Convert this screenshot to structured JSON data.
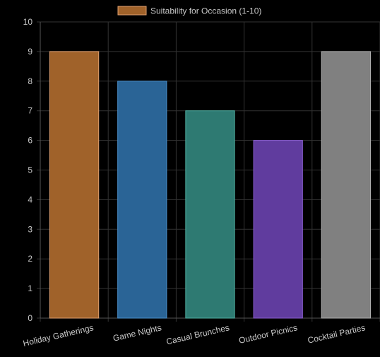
{
  "chart_data": {
    "type": "bar",
    "categories": [
      "Holiday Gatherings",
      "Game Nights",
      "Casual Brunches",
      "Outdoor Picnics",
      "Cocktail Parties"
    ],
    "series": [
      {
        "name": "Suitability for Occasion (1-10)",
        "values": [
          9,
          8,
          7,
          6,
          9
        ]
      }
    ],
    "ylim": [
      0,
      10
    ],
    "yticks": [
      0,
      1,
      2,
      3,
      4,
      5,
      6,
      7,
      8,
      9,
      10
    ],
    "grid": true,
    "legend": "top-center"
  },
  "colors": {
    "bars_fill": [
      "#a0622a",
      "#2a6496",
      "#2e7a72",
      "#603c9e",
      "#808080"
    ],
    "bars_stroke": [
      "#e0a070",
      "#4a8fcc",
      "#4fb0a2",
      "#8a5ed0",
      "#b0b0b0"
    ],
    "legend_swatch_fill": "#a0622a",
    "legend_swatch_stroke": "#e0a070",
    "grid": "#333333",
    "axis": "#555555",
    "tick_text": "#c8c8c8",
    "background": "#000000"
  }
}
